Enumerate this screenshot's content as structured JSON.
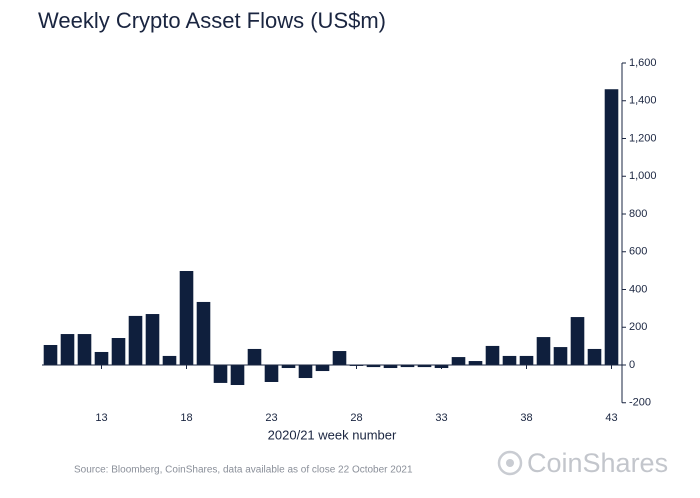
{
  "chart_data": {
    "type": "bar",
    "title": "Weekly Crypto Asset Flows (US$m)",
    "x_label": "2020/21 week number",
    "source": "Source: Bloomberg, CoinShares, data available as of close 22 October 2021",
    "logo": "CoinShares",
    "x": [
      10,
      11,
      12,
      13,
      14,
      15,
      16,
      17,
      18,
      19,
      20,
      21,
      22,
      23,
      24,
      25,
      26,
      27,
      28,
      29,
      30,
      31,
      32,
      33,
      34,
      35,
      36,
      37,
      38,
      39,
      40,
      41,
      42,
      43
    ],
    "values": [
      106,
      164,
      164,
      69,
      143,
      260,
      270,
      48,
      498,
      334,
      -95,
      -106,
      85,
      -90,
      -16,
      -69,
      -32,
      74,
      -5,
      -11,
      -16,
      -11,
      -11,
      -16,
      42,
      21,
      101,
      48,
      48,
      148,
      95,
      254,
      85,
      1461
    ],
    "color": "#0f1f3d",
    "xlim": [
      9.5,
      43.5
    ],
    "xticks": [
      13,
      18,
      23,
      28,
      33,
      38,
      43
    ],
    "ylim": [
      -200,
      1600
    ],
    "yticks": [
      -200,
      0,
      200,
      400,
      600,
      800,
      {
        "value": 1000,
        "label": "1,000"
      },
      {
        "value": 1200,
        "label": "1,200"
      },
      {
        "value": 1400,
        "label": "1,400"
      },
      {
        "value": 1600,
        "label": "1,600"
      }
    ],
    "grid": false
  }
}
